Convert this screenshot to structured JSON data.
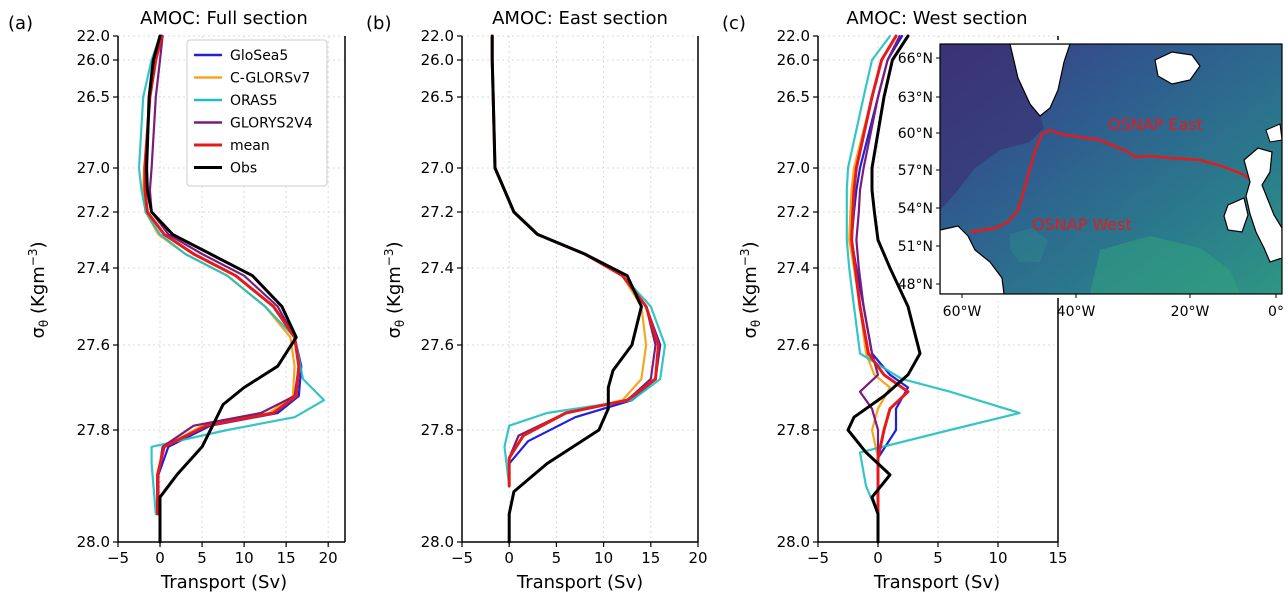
{
  "colors": {
    "GloSea5": "#1f1fe0",
    "C-GLORSv7": "#f5a623",
    "ORAS5": "#1fbfbf",
    "GLORYS2V4": "#7b1c7b",
    "mean": "#e41a1c",
    "Obs": "#000000",
    "grid": "#d9d9d9",
    "map_section_line": "#e41a1c"
  },
  "ylabel": "σθ (Kgm⁻³)",
  "xlabel": "Transport (Sv)",
  "y_tick_labels": [
    "22.0",
    "26.0",
    "26.5",
    "27.0",
    "27.2",
    "27.4",
    "27.6",
    "27.8",
    "28.0"
  ],
  "legend": [
    "GloSea5",
    "C-GLORSv7",
    "ORAS5",
    "GLORYS2V4",
    "mean",
    "Obs"
  ],
  "panels": [
    {
      "letter": "(a)",
      "title": "AMOC: Full section"
    },
    {
      "letter": "(b)",
      "title": "AMOC: East section"
    },
    {
      "letter": "(c)",
      "title": "AMOC: West section"
    }
  ],
  "map": {
    "lat_labels": [
      "66°N",
      "63°N",
      "60°N",
      "57°N",
      "54°N",
      "51°N",
      "48°N"
    ],
    "lon_labels": [
      "60°W",
      "40°W",
      "20°W",
      "0°"
    ],
    "east_label": "OSNAP East",
    "west_label": "OSNAP West"
  },
  "chart_data": [
    {
      "type": "line",
      "title": "AMOC: Full section",
      "xlabel": "Transport (Sv)",
      "ylabel": "σθ (Kgm⁻³)",
      "xlim": [
        -5,
        22
      ],
      "xticks": [
        -5,
        0,
        5,
        10,
        15,
        20
      ],
      "yticks": [
        22.0,
        26.0,
        26.5,
        27.0,
        27.2,
        27.4,
        27.6,
        27.8,
        28.0
      ],
      "y_inverted": true,
      "grid": true,
      "legend_position": "upper-right",
      "series": [
        {
          "name": "GloSea5",
          "x": [
            0.2,
            -0.5,
            -1.2,
            -1.8,
            -1.8,
            -1.5,
            0.5,
            4,
            9,
            13.5,
            16,
            16.8,
            16.5,
            14,
            6,
            1,
            -0.2,
            -0.2
          ],
          "y": [
            22.0,
            26.0,
            26.5,
            27.0,
            27.1,
            27.2,
            27.28,
            27.35,
            27.42,
            27.5,
            27.58,
            27.65,
            27.72,
            27.76,
            27.79,
            27.83,
            27.88,
            27.95
          ]
        },
        {
          "name": "C-GLORSv7",
          "x": [
            0.2,
            -0.5,
            -1.2,
            -1.9,
            -2,
            -1.7,
            -0.2,
            3,
            8,
            12.5,
            15.5,
            16,
            15.8,
            13,
            5,
            0.5,
            -0.3,
            -0.3
          ],
          "y": [
            22.0,
            26.0,
            26.5,
            27.0,
            27.1,
            27.2,
            27.28,
            27.35,
            27.42,
            27.5,
            27.58,
            27.65,
            27.72,
            27.76,
            27.79,
            27.83,
            27.88,
            27.95
          ]
        },
        {
          "name": "ORAS5",
          "x": [
            0,
            -1,
            -2,
            -2.5,
            -2.2,
            -1.7,
            0,
            3,
            8,
            12.5,
            16,
            17,
            19.5,
            16,
            8,
            -1,
            -1,
            -0.5
          ],
          "y": [
            22.0,
            26.0,
            26.5,
            27.0,
            27.1,
            27.2,
            27.28,
            27.35,
            27.42,
            27.5,
            27.58,
            27.68,
            27.73,
            27.77,
            27.8,
            27.83,
            27.86,
            27.95
          ]
        },
        {
          "name": "GLORYS2V4",
          "x": [
            0.3,
            0,
            -0.5,
            -1,
            -1.2,
            -1,
            1,
            5,
            10,
            14,
            16,
            16.5,
            16,
            12,
            4,
            0.3,
            -0.2,
            -0.2
          ],
          "y": [
            22.0,
            26.0,
            26.5,
            27.0,
            27.1,
            27.2,
            27.28,
            27.35,
            27.42,
            27.5,
            27.58,
            27.65,
            27.72,
            27.76,
            27.79,
            27.83,
            27.88,
            27.95
          ]
        },
        {
          "name": "mean",
          "x": [
            0.2,
            -0.5,
            -1.2,
            -1.8,
            -1.8,
            -1.5,
            0.5,
            4,
            9,
            13.5,
            16,
            16.5,
            16.2,
            13.5,
            5.5,
            0.5,
            -0.3,
            -0.3
          ],
          "y": [
            22.0,
            26.0,
            26.5,
            27.0,
            27.1,
            27.2,
            27.28,
            27.35,
            27.42,
            27.5,
            27.58,
            27.65,
            27.72,
            27.76,
            27.79,
            27.83,
            27.88,
            27.95
          ]
        },
        {
          "name": "Obs",
          "x": [
            0,
            -0.8,
            -1.3,
            -1.6,
            -1.5,
            -1,
            1.5,
            6,
            11,
            14.5,
            16.2,
            14,
            10,
            7.5,
            6.5,
            5,
            2,
            0,
            0,
            0
          ],
          "y": [
            22.0,
            26.0,
            26.5,
            27.0,
            27.1,
            27.2,
            27.28,
            27.35,
            27.42,
            27.5,
            27.58,
            27.65,
            27.7,
            27.74,
            27.78,
            27.83,
            27.88,
            27.92,
            27.96,
            28.0
          ]
        }
      ]
    },
    {
      "type": "line",
      "title": "AMOC: East section",
      "xlabel": "Transport (Sv)",
      "ylabel": "σθ (Kgm⁻³)",
      "xlim": [
        -5,
        20
      ],
      "xticks": [
        -5,
        0,
        5,
        10,
        15,
        20
      ],
      "yticks": [
        22.0,
        26.0,
        26.5,
        27.0,
        27.2,
        27.4,
        27.6,
        27.8,
        28.0
      ],
      "y_inverted": true,
      "grid": true,
      "series": [
        {
          "name": "GloSea5",
          "x": [
            -1.8,
            -1.8,
            -1.7,
            -1.5,
            -0.5,
            0.5,
            3,
            8,
            12,
            14.5,
            16,
            15.5,
            13,
            7,
            2,
            0,
            0
          ],
          "y": [
            22.0,
            26.0,
            26.5,
            27.0,
            27.1,
            27.2,
            27.28,
            27.35,
            27.42,
            27.5,
            27.6,
            27.68,
            27.73,
            27.77,
            27.82,
            27.86,
            27.9
          ]
        },
        {
          "name": "C-GLORSv7",
          "x": [
            -1.8,
            -1.8,
            -1.7,
            -1.5,
            -0.5,
            0.5,
            3,
            8,
            12,
            14,
            14.5,
            14,
            12,
            6,
            1,
            0,
            0
          ],
          "y": [
            22.0,
            26.0,
            26.5,
            27.0,
            27.1,
            27.2,
            27.28,
            27.35,
            27.42,
            27.5,
            27.6,
            27.68,
            27.73,
            27.76,
            27.81,
            27.85,
            27.9
          ]
        },
        {
          "name": "ORAS5",
          "x": [
            -1.8,
            -1.8,
            -1.7,
            -1.5,
            -0.5,
            0.5,
            3,
            8,
            12,
            15,
            16.5,
            16,
            13,
            4,
            0,
            -0.5,
            0
          ],
          "y": [
            22.0,
            26.0,
            26.5,
            27.0,
            27.1,
            27.2,
            27.28,
            27.35,
            27.42,
            27.5,
            27.6,
            27.68,
            27.73,
            27.76,
            27.79,
            27.83,
            27.9
          ]
        },
        {
          "name": "GLORYS2V4",
          "x": [
            -1.8,
            -1.8,
            -1.7,
            -1.5,
            -0.5,
            0.5,
            3,
            8,
            12,
            14.5,
            15.5,
            15,
            12.5,
            6,
            1,
            0,
            0
          ],
          "y": [
            22.0,
            26.0,
            26.5,
            27.0,
            27.1,
            27.2,
            27.28,
            27.35,
            27.42,
            27.5,
            27.6,
            27.68,
            27.73,
            27.76,
            27.81,
            27.85,
            27.9
          ]
        },
        {
          "name": "mean",
          "x": [
            -1.8,
            -1.8,
            -1.7,
            -1.5,
            -0.5,
            0.5,
            3,
            8,
            12,
            14.5,
            15.8,
            15.5,
            12.5,
            6,
            1.5,
            0,
            0
          ],
          "y": [
            22.0,
            26.0,
            26.5,
            27.0,
            27.1,
            27.2,
            27.28,
            27.35,
            27.42,
            27.5,
            27.6,
            27.68,
            27.73,
            27.76,
            27.81,
            27.85,
            27.9
          ]
        },
        {
          "name": "Obs",
          "x": [
            -1.8,
            -1.8,
            -1.7,
            -1.5,
            -0.5,
            0.5,
            3,
            8,
            12.5,
            14,
            13,
            11,
            10.5,
            10.5,
            9.5,
            4,
            0.5,
            0,
            0
          ],
          "y": [
            22.0,
            26.0,
            26.5,
            27.0,
            27.1,
            27.2,
            27.28,
            27.35,
            27.42,
            27.5,
            27.6,
            27.66,
            27.7,
            27.75,
            27.8,
            27.86,
            27.91,
            27.95,
            28.0
          ]
        }
      ]
    },
    {
      "type": "line",
      "title": "AMOC: West section",
      "xlabel": "Transport (Sv)",
      "ylabel": "σθ (Kgm⁻³)",
      "xlim": [
        -5,
        15
      ],
      "xticks": [
        -5,
        0,
        5,
        10,
        15
      ],
      "yticks": [
        22.0,
        26.0,
        26.5,
        27.0,
        27.2,
        27.4,
        27.6,
        27.8,
        28.0
      ],
      "y_inverted": true,
      "grid": true,
      "series": [
        {
          "name": "GloSea5",
          "x": [
            2,
            0.8,
            0,
            -1.5,
            -1.8,
            -2,
            -2.2,
            -1.8,
            -1.2,
            -0.5,
            1,
            2.5,
            1.5,
            1.5,
            0,
            0,
            0
          ],
          "y": [
            22.0,
            26.0,
            26.5,
            27.0,
            27.1,
            27.2,
            27.3,
            27.4,
            27.5,
            27.62,
            27.67,
            27.7,
            27.75,
            27.8,
            27.85,
            27.9,
            27.95
          ]
        },
        {
          "name": "C-GLORSv7",
          "x": [
            1.5,
            0.3,
            -0.5,
            -2,
            -2.2,
            -2.3,
            -2.4,
            -2,
            -1.5,
            -1,
            -0.3,
            1,
            0,
            -0.5,
            0,
            0,
            0
          ],
          "y": [
            22.0,
            26.0,
            26.5,
            27.0,
            27.1,
            27.2,
            27.3,
            27.4,
            27.5,
            27.62,
            27.67,
            27.7,
            27.75,
            27.8,
            27.85,
            27.9,
            27.95
          ]
        },
        {
          "name": "ORAS5",
          "x": [
            1,
            -0.5,
            -1.2,
            -2.5,
            -2.6,
            -2.6,
            -2.6,
            -2.4,
            -2,
            -1.5,
            2,
            6,
            11.8,
            6,
            -1.5,
            -1,
            0
          ],
          "y": [
            22.0,
            26.0,
            26.5,
            27.0,
            27.1,
            27.2,
            27.3,
            27.4,
            27.5,
            27.62,
            27.68,
            27.71,
            27.76,
            27.8,
            27.84,
            27.9,
            27.95
          ]
        },
        {
          "name": "GLORYS2V4",
          "x": [
            1.8,
            0.8,
            0,
            -1.2,
            -1.5,
            -1.6,
            -1.8,
            -1.6,
            -1.2,
            -0.5,
            0,
            -1.5,
            -0.5,
            0,
            0,
            0,
            0
          ],
          "y": [
            22.0,
            26.0,
            26.5,
            27.0,
            27.1,
            27.2,
            27.3,
            27.4,
            27.5,
            27.62,
            27.67,
            27.71,
            27.75,
            27.8,
            27.85,
            27.9,
            27.95
          ]
        },
        {
          "name": "mean",
          "x": [
            1.5,
            0.3,
            -0.5,
            -1.8,
            -2,
            -2.1,
            -2.2,
            -1.9,
            -1.5,
            -0.8,
            0.5,
            2.5,
            1,
            0.5,
            0,
            0,
            0
          ],
          "y": [
            22.0,
            26.0,
            26.5,
            27.0,
            27.1,
            27.2,
            27.3,
            27.4,
            27.5,
            27.62,
            27.67,
            27.71,
            27.75,
            27.8,
            27.85,
            27.9,
            27.95
          ]
        },
        {
          "name": "Obs",
          "x": [
            2.5,
            1.2,
            0.5,
            -0.5,
            -0.5,
            -0.3,
            0,
            1,
            2.5,
            3.5,
            2.5,
            0.5,
            -2,
            -2.5,
            -1,
            1,
            -0.5,
            0,
            0
          ],
          "y": [
            22.0,
            26.0,
            26.5,
            27.0,
            27.1,
            27.2,
            27.3,
            27.4,
            27.5,
            27.62,
            27.67,
            27.72,
            27.77,
            27.8,
            27.84,
            27.88,
            27.92,
            27.95,
            28.0
          ]
        }
      ]
    }
  ]
}
